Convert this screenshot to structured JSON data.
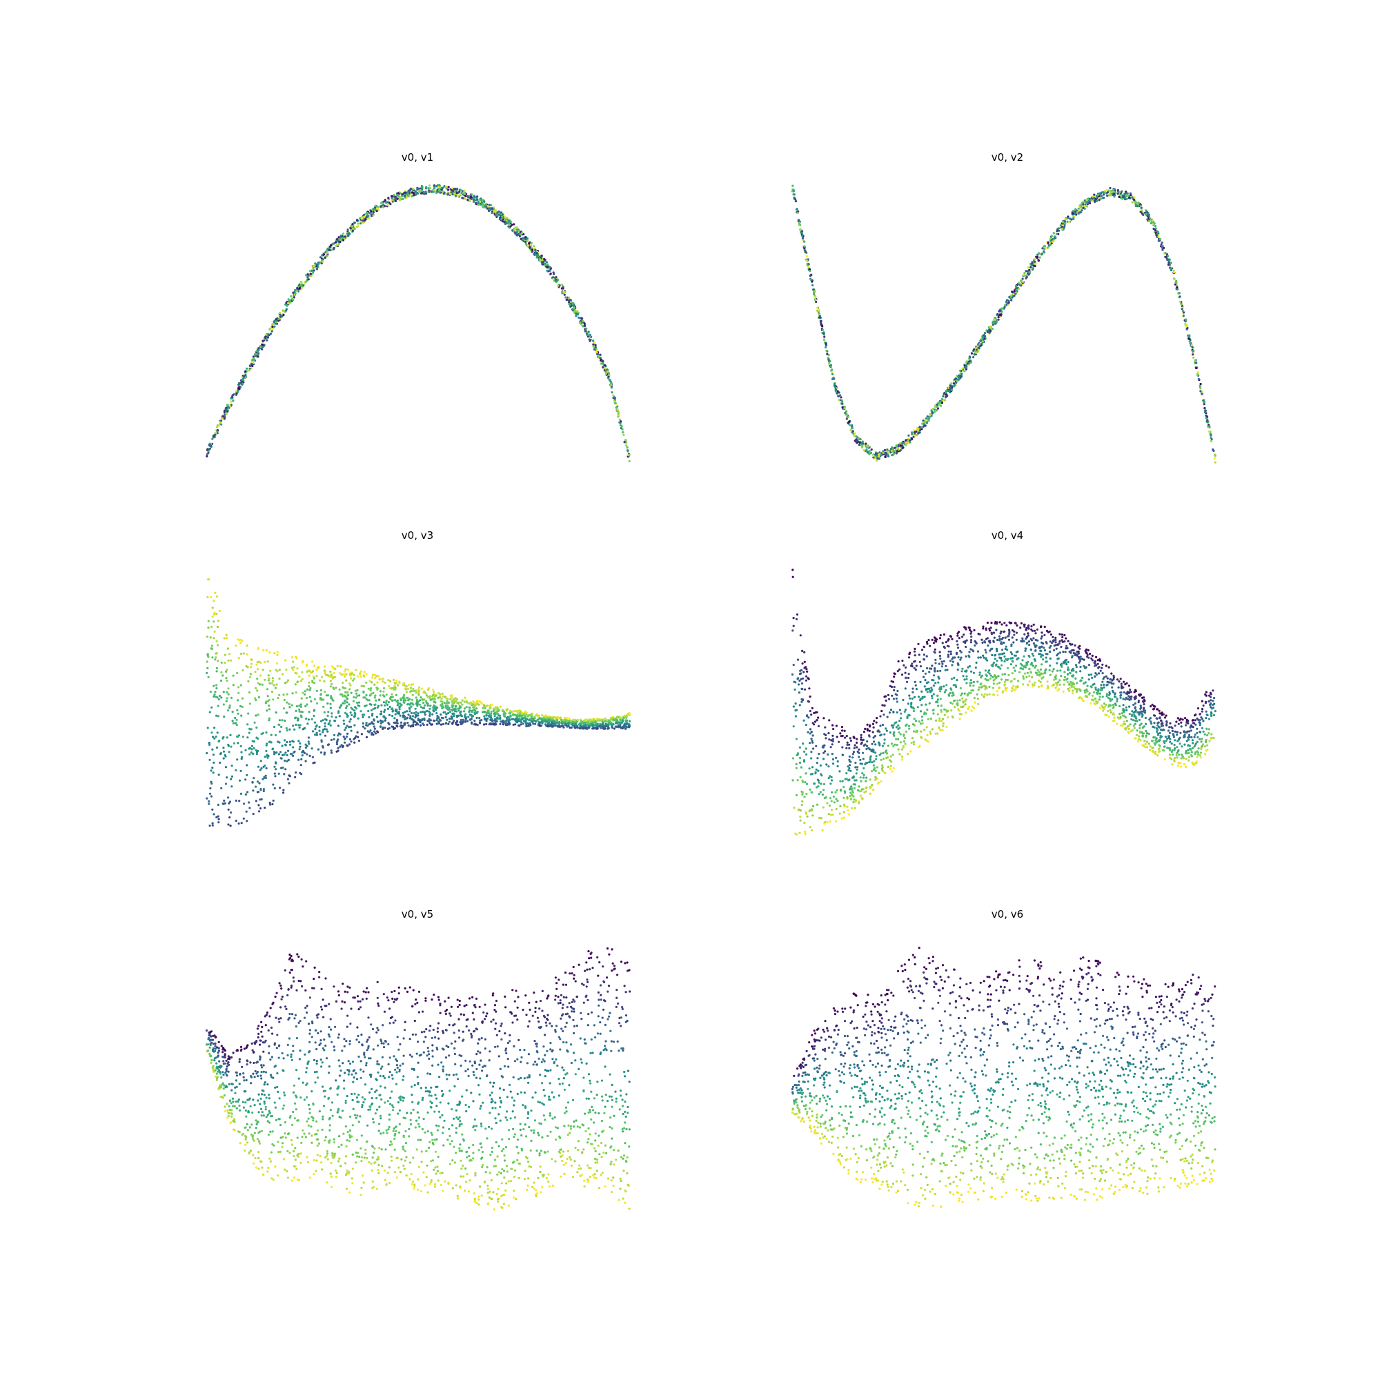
{
  "figure": {
    "background": "#ffffff",
    "colormap": "viridis",
    "colormap_stops": [
      "#440154",
      "#3b528b",
      "#21918c",
      "#5ec962",
      "#fde725"
    ],
    "axes_visible": false,
    "layout": "3 rows x 2 columns"
  },
  "chart_data": [
    {
      "type": "scatter",
      "title": "v0, v1",
      "description_shape": "inverted parabola",
      "series": [
        {
          "x": [
            -1.0,
            -0.9,
            -0.8,
            -0.7,
            -0.6,
            -0.5,
            -0.4,
            -0.3,
            -0.2,
            -0.1,
            0.0,
            0.1,
            0.2,
            0.3,
            0.4,
            0.5,
            0.6,
            0.7,
            0.8,
            0.9,
            1.0
          ],
          "y": [
            -0.95,
            -0.62,
            -0.33,
            -0.06,
            0.18,
            0.39,
            0.57,
            0.72,
            0.84,
            0.93,
            0.98,
            0.99,
            0.96,
            0.89,
            0.78,
            0.63,
            0.44,
            0.21,
            -0.06,
            -0.38,
            -1.0
          ]
        }
      ]
    },
    {
      "type": "scatter",
      "title": "v0, v2",
      "description_shape": "cubic-like curve",
      "series": [
        {
          "x": [
            -1.0,
            -0.9,
            -0.8,
            -0.7,
            -0.6,
            -0.5,
            -0.4,
            -0.3,
            -0.2,
            -0.1,
            0.0,
            0.1,
            0.2,
            0.3,
            0.4,
            0.5,
            0.6,
            0.7,
            0.8,
            0.9,
            1.0
          ],
          "y": [
            1.0,
            0.25,
            -0.45,
            -0.85,
            -0.98,
            -0.92,
            -0.78,
            -0.58,
            -0.36,
            -0.12,
            0.12,
            0.35,
            0.57,
            0.76,
            0.9,
            0.97,
            0.93,
            0.75,
            0.38,
            -0.25,
            -1.0
          ]
        }
      ]
    },
    {
      "type": "scatter",
      "title": "v0, v3",
      "description_shape": "wedge band narrowing to the right",
      "series": [
        {
          "x": [
            -1.0,
            -0.9,
            -0.8,
            -0.7,
            -0.6,
            -0.5,
            -0.4,
            -0.3,
            -0.2,
            -0.1,
            0.0,
            0.1,
            0.2,
            0.3,
            0.4,
            0.5,
            0.6,
            0.7,
            0.8,
            0.9,
            1.0
          ],
          "y_upper": [
            1.0,
            0.55,
            0.42,
            0.38,
            0.34,
            0.3,
            0.27,
            0.24,
            0.2,
            0.16,
            0.12,
            0.08,
            0.04,
            0.0,
            -0.04,
            -0.07,
            -0.1,
            -0.12,
            -0.13,
            -0.12,
            -0.08
          ],
          "y_lower": [
            -1.0,
            -0.93,
            -0.88,
            -0.78,
            -0.62,
            -0.48,
            -0.38,
            -0.3,
            -0.24,
            -0.2,
            -0.18,
            -0.17,
            -0.17,
            -0.17,
            -0.17,
            -0.18,
            -0.18,
            -0.19,
            -0.2,
            -0.2,
            -0.2
          ]
        }
      ]
    },
    {
      "type": "scatter",
      "title": "v0, v4",
      "description_shape": "wavy band",
      "series": [
        {
          "x": [
            -1.0,
            -0.9,
            -0.8,
            -0.7,
            -0.6,
            -0.5,
            -0.4,
            -0.3,
            -0.2,
            -0.1,
            0.0,
            0.1,
            0.2,
            0.3,
            0.4,
            0.5,
            0.6,
            0.7,
            0.8,
            0.9,
            1.0
          ],
          "y_upper": [
            1.0,
            -0.05,
            -0.15,
            -0.25,
            -0.1,
            0.3,
            0.43,
            0.5,
            0.55,
            0.58,
            0.6,
            0.58,
            0.55,
            0.48,
            0.38,
            0.26,
            0.12,
            -0.02,
            -0.12,
            -0.1,
            0.2
          ],
          "y_lower": [
            -1.0,
            -0.98,
            -0.9,
            -0.8,
            -0.62,
            -0.48,
            -0.35,
            -0.22,
            -0.12,
            -0.02,
            0.06,
            0.1,
            0.1,
            0.06,
            -0.02,
            -0.12,
            -0.25,
            -0.38,
            -0.48,
            -0.48,
            -0.3
          ]
        }
      ]
    },
    {
      "type": "scatter",
      "title": "v0, v5",
      "description_shape": "dense cloud",
      "series": [
        {
          "x": [
            -1.0,
            -0.9,
            -0.8,
            -0.7,
            -0.6,
            -0.5,
            -0.4,
            -0.3,
            -0.2,
            -0.1,
            0.0,
            0.1,
            0.2,
            0.3,
            0.4,
            0.5,
            0.6,
            0.7,
            0.8,
            0.9,
            1.0
          ],
          "y_upper": [
            0.4,
            0.2,
            0.28,
            0.55,
            0.95,
            0.85,
            0.72,
            0.68,
            0.74,
            0.7,
            0.66,
            0.62,
            0.64,
            0.62,
            0.68,
            0.64,
            0.72,
            0.8,
            0.95,
            1.0,
            0.85
          ],
          "y_lower": [
            0.2,
            -0.3,
            -0.6,
            -0.75,
            -0.78,
            -0.72,
            -0.8,
            -0.86,
            -0.84,
            -0.8,
            -0.82,
            -0.88,
            -0.9,
            -0.95,
            -0.98,
            -0.88,
            -0.88,
            -0.72,
            -0.8,
            -0.85,
            -1.0
          ]
        }
      ]
    },
    {
      "type": "scatter",
      "title": "v0, v6",
      "description_shape": "dense cloud",
      "series": [
        {
          "x": [
            -1.0,
            -0.9,
            -0.8,
            -0.7,
            -0.6,
            -0.5,
            -0.4,
            -0.3,
            -0.2,
            -0.1,
            0.0,
            0.1,
            0.2,
            0.3,
            0.4,
            0.5,
            0.6,
            0.7,
            0.8,
            0.9,
            1.0
          ],
          "y_upper": [
            0.0,
            0.35,
            0.55,
            0.65,
            0.6,
            0.8,
            1.0,
            0.88,
            0.78,
            0.75,
            0.82,
            0.9,
            0.86,
            0.78,
            0.95,
            0.82,
            0.76,
            0.72,
            0.74,
            0.78,
            0.7
          ],
          "y_lower": [
            -0.25,
            -0.4,
            -0.6,
            -0.75,
            -0.8,
            -0.88,
            -0.96,
            -0.95,
            -0.92,
            -0.9,
            -0.88,
            -0.92,
            -0.9,
            -0.88,
            -0.92,
            -0.85,
            -0.82,
            -0.85,
            -0.82,
            -0.78,
            -0.75
          ]
        }
      ]
    }
  ]
}
